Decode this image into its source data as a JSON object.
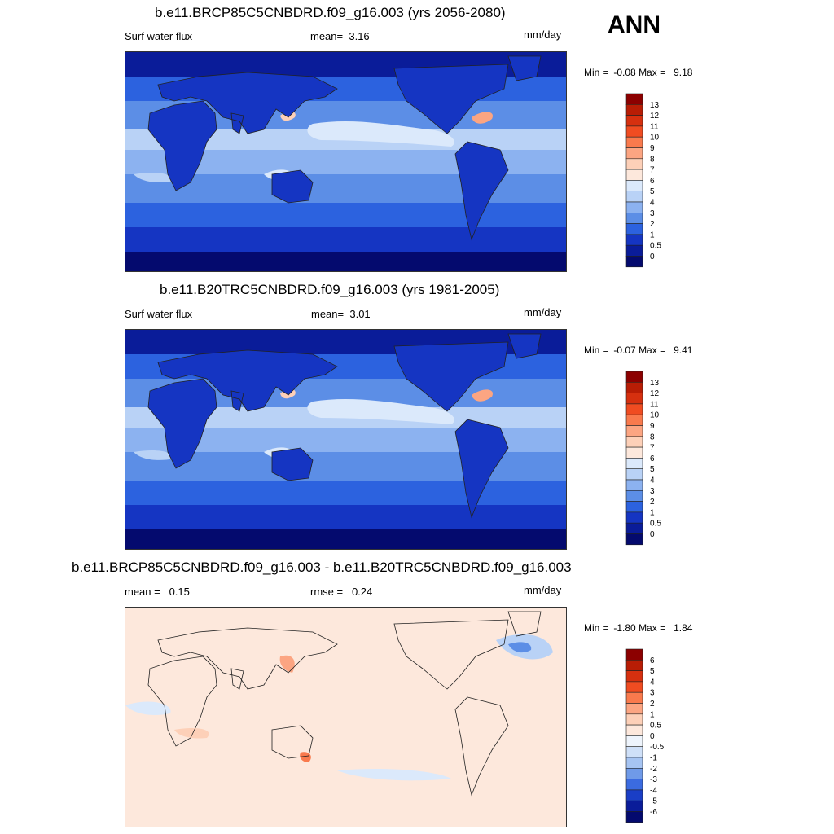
{
  "season": "ANN",
  "panels": [
    {
      "id": "future",
      "title": "b.e11.BRCP85C5CNBDRD.f09_g16.003 (yrs 2056-2080)",
      "left_label": "Surf water flux",
      "stat_label": "mean=",
      "stat_value": "3.16",
      "units": "mm/day",
      "min_label": "Min =",
      "min_value": "-0.08",
      "max_label": "Max =",
      "max_value": "9.18"
    },
    {
      "id": "historical",
      "title": "b.e11.B20TRC5CNBDRD.f09_g16.003 (yrs 1981-2005)",
      "left_label": "Surf water flux",
      "stat_label": "mean=",
      "stat_value": "3.01",
      "units": "mm/day",
      "min_label": "Min =",
      "min_value": "-0.07",
      "max_label": "Max =",
      "max_value": "9.41"
    },
    {
      "id": "difference",
      "title": "b.e11.BRCP85C5CNBDRD.f09_g16.003 - b.e11.B20TRC5CNBDRD.f09_g16.003",
      "left_label": "mean =",
      "left_value": "0.15",
      "stat_label": "rmse =",
      "stat_value": "0.24",
      "units": "mm/day",
      "min_label": "Min =",
      "min_value": "-1.80",
      "max_label": "Max =",
      "max_value": "1.84"
    }
  ],
  "chart_data": [
    {
      "type": "heatmap",
      "title": "b.e11.BRCP85C5CNBDRD.f09_g16.003 (yrs 2056-2080)",
      "variable": "Surf water flux",
      "units": "mm/day",
      "mean": 3.16,
      "min": -0.08,
      "max": 9.18,
      "colorbar_levels": [
        "13",
        "12",
        "11",
        "10",
        "9",
        "8",
        "7",
        "6",
        "5",
        "4",
        "3",
        "2",
        "1",
        "0.5",
        "0"
      ],
      "colorbar_colors": [
        "#8c0000",
        "#b81d05",
        "#d6300f",
        "#f04c21",
        "#f97a4d",
        "#fca582",
        "#fdd0b8",
        "#fde8dc",
        "#dbe9fb",
        "#b9d2f6",
        "#8cb2f0",
        "#5c8ee6",
        "#2c62df",
        "#1535c2",
        "#0a1c99",
        "#040a6e"
      ]
    },
    {
      "type": "heatmap",
      "title": "b.e11.B20TRC5CNBDRD.f09_g16.003 (yrs 1981-2005)",
      "variable": "Surf water flux",
      "units": "mm/day",
      "mean": 3.01,
      "min": -0.07,
      "max": 9.41,
      "colorbar_levels": [
        "13",
        "12",
        "11",
        "10",
        "9",
        "8",
        "7",
        "6",
        "5",
        "4",
        "3",
        "2",
        "1",
        "0.5",
        "0"
      ],
      "colorbar_colors": [
        "#8c0000",
        "#b81d05",
        "#d6300f",
        "#f04c21",
        "#f97a4d",
        "#fca582",
        "#fdd0b8",
        "#fde8dc",
        "#dbe9fb",
        "#b9d2f6",
        "#8cb2f0",
        "#5c8ee6",
        "#2c62df",
        "#1535c2",
        "#0a1c99",
        "#040a6e"
      ]
    },
    {
      "type": "heatmap",
      "title": "b.e11.BRCP85C5CNBDRD.f09_g16.003 - b.e11.B20TRC5CNBDRD.f09_g16.003",
      "units": "mm/day",
      "mean": 0.15,
      "rmse": 0.24,
      "min": -1.8,
      "max": 1.84,
      "colorbar_levels": [
        "6",
        "5",
        "4",
        "3",
        "2",
        "1",
        "0.5",
        "0",
        "-0.5",
        "-1",
        "-2",
        "-3",
        "-4",
        "-5",
        "-6"
      ],
      "colorbar_colors": [
        "#8c0000",
        "#b81d05",
        "#d6300f",
        "#f04c21",
        "#f97a4d",
        "#fca582",
        "#fdd0b8",
        "#fde8dc",
        "#eef4fc",
        "#cfe0f8",
        "#a6c4f2",
        "#6f9ae8",
        "#3b6be0",
        "#1a3ec6",
        "#0a1c99",
        "#040a6e"
      ]
    }
  ]
}
